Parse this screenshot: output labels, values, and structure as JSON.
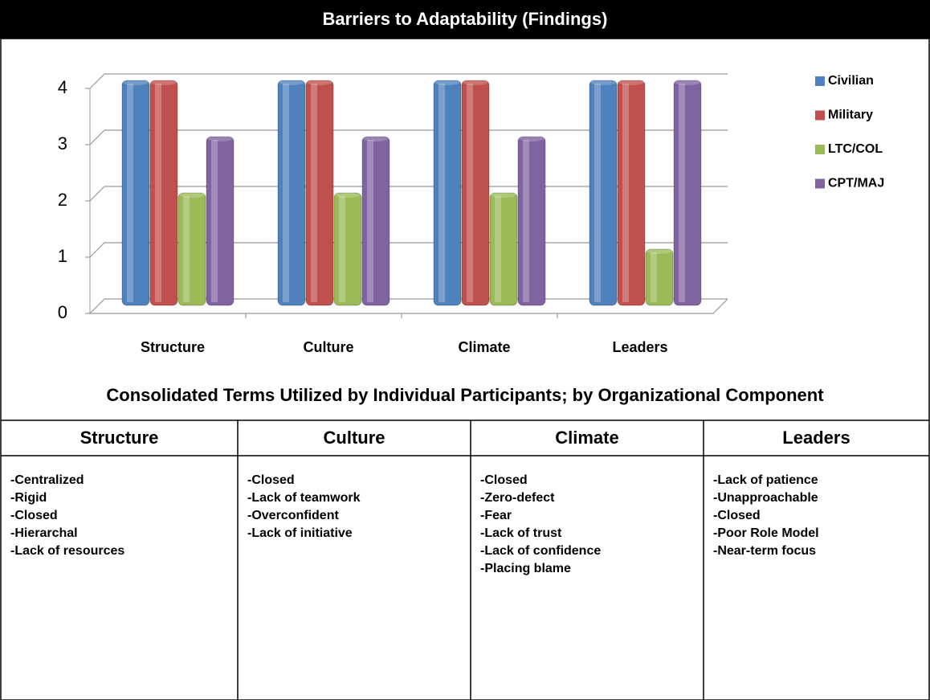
{
  "chart_data": {
    "type": "bar",
    "title": "Barriers to Adaptability (Findings)",
    "categories": [
      "Structure",
      "Culture",
      "Climate",
      "Leaders"
    ],
    "series": [
      {
        "name": "Civilian",
        "color": "#4f81bd",
        "values": [
          4,
          4,
          4,
          4
        ]
      },
      {
        "name": "Military",
        "color": "#c0504d",
        "values": [
          4,
          4,
          4,
          4
        ]
      },
      {
        "name": "LTC/COL",
        "color": "#9bbb59",
        "values": [
          2,
          2,
          2,
          1
        ]
      },
      {
        "name": "CPT/MAJ",
        "color": "#8064a2",
        "values": [
          3,
          3,
          3,
          4
        ]
      }
    ],
    "ylim": [
      0,
      4
    ],
    "yticks": [
      0,
      1,
      2,
      3,
      4
    ],
    "grid": true,
    "legend": "right"
  },
  "section_title": "Consolidated Terms Utilized by Individual Participants; by Organizational Component",
  "table": {
    "columns": [
      {
        "header": "Structure",
        "items": [
          "-Centralized",
          "-Rigid",
          "-Closed",
          "-Hierarchal",
          "-Lack of resources"
        ]
      },
      {
        "header": "Culture",
        "items": [
          "-Closed",
          "-Lack of teamwork",
          "-Overconfident",
          "-Lack of initiative"
        ]
      },
      {
        "header": "Climate",
        "items": [
          "-Closed",
          "-Zero-defect",
          "-Fear",
          "-Lack of trust",
          "-Lack of confidence",
          "-Placing blame"
        ]
      },
      {
        "header": "Leaders",
        "items": [
          "-Lack of patience",
          "-Unapproachable",
          "-Closed",
          "-Poor Role Model",
          "-Near-term focus"
        ]
      }
    ]
  }
}
